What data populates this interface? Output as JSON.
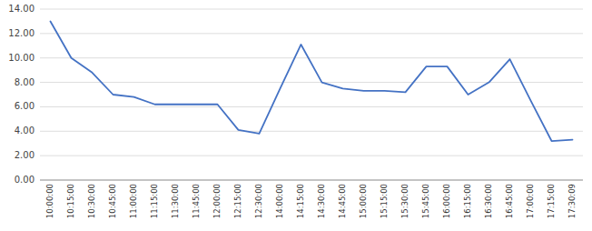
{
  "chart_data": {
    "type": "line",
    "categories": [
      "10:00:00",
      "10:15:00",
      "10:30:00",
      "10:45:00",
      "11:00:00",
      "11:15:00",
      "11:30:00",
      "11:45:00",
      "12:00:00",
      "12:15:00",
      "12:30:00",
      "14:00:00",
      "14:15:00",
      "14:30:00",
      "14:45:00",
      "15:00:00",
      "15:15:00",
      "15:30:00",
      "15:45:00",
      "16:00:00",
      "16:15:00",
      "16:30:00",
      "16:45:00",
      "17:00:00",
      "17:15:00",
      "17:30:09"
    ],
    "values": [
      13.0,
      10.0,
      8.8,
      7.0,
      6.8,
      6.2,
      6.2,
      6.2,
      6.2,
      4.1,
      3.8,
      7.5,
      11.1,
      8.0,
      7.5,
      7.3,
      7.3,
      7.2,
      9.3,
      9.3,
      7.0,
      8.0,
      9.9,
      6.5,
      3.2,
      3.3
    ],
    "color": "#4472C4",
    "ylim": [
      0.0,
      14.0
    ],
    "yticks": [
      {
        "value": 0.0,
        "label": "0.00"
      },
      {
        "value": 2.0,
        "label": "2.00"
      },
      {
        "value": 4.0,
        "label": "4.00"
      },
      {
        "value": 6.0,
        "label": "6.00"
      },
      {
        "value": 8.0,
        "label": "8.00"
      },
      {
        "value": 10.0,
        "label": "10.00"
      },
      {
        "value": 12.0,
        "label": "12.00"
      },
      {
        "value": 14.0,
        "label": "14.00"
      }
    ],
    "grid": true
  }
}
